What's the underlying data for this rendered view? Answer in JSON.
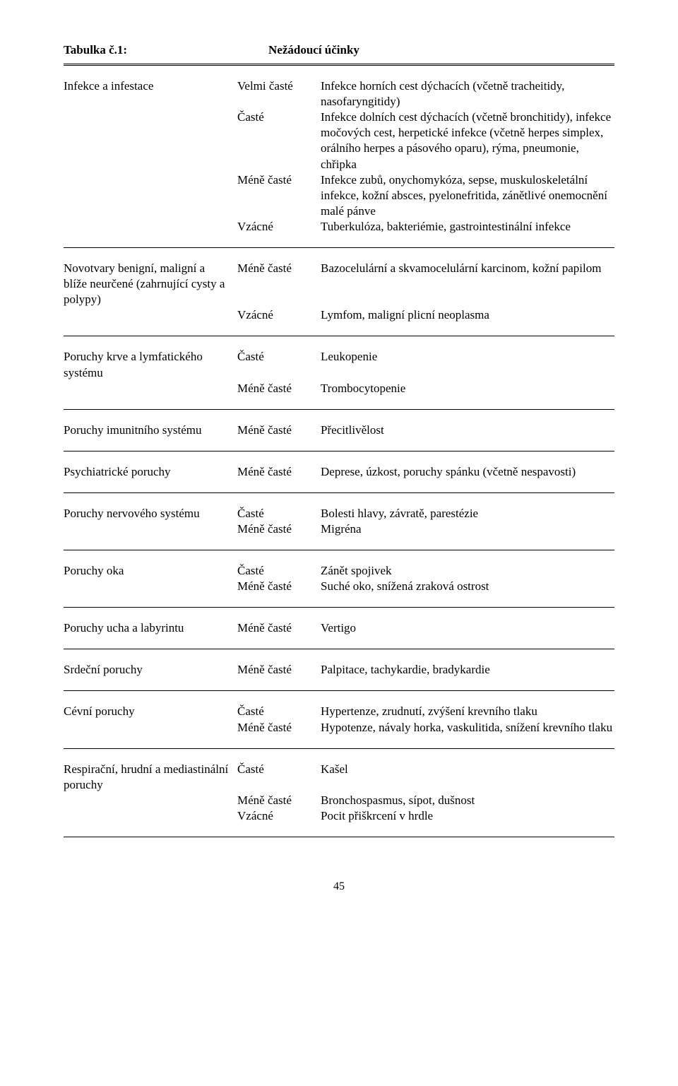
{
  "header": {
    "left": "Tabulka č.1:",
    "right": "Nežádoucí účinky"
  },
  "sections": [
    {
      "category": "Infekce a infestace",
      "entries": [
        {
          "freq": "Velmi časté",
          "desc": "Infekce horních cest dýchacích (včetně tracheitidy, nasofaryngitidy)"
        },
        {
          "freq": "Časté",
          "desc": "Infekce dolních cest dýchacích (včetně bronchitidy), infekce močových cest, herpetické infekce (včetně herpes simplex, orálního herpes a pásového oparu), rýma, pneumonie, chřipka"
        },
        {
          "freq": "Méně časté",
          "desc": "Infekce zubů, onychomykóza, sepse, muskuloskeletální infekce, kožní absces, pyelonefritida, zánětlivé onemocnění malé pánve"
        },
        {
          "freq": "Vzácné",
          "desc": "Tuberkulóza, bakteriémie, gastrointestinální infekce"
        }
      ]
    },
    {
      "category": "Novotvary benigní, maligní a blíže neurčené (zahrnující cysty a polypy)",
      "entries": [
        {
          "freq": "Méně časté",
          "desc": "Bazocelulární a skvamocelulární karcinom, kožní papilom"
        },
        {
          "freq": "Vzácné",
          "desc": "Lymfom, maligní plicní neoplasma"
        }
      ]
    },
    {
      "category": "Poruchy krve a lymfatického systému",
      "entries": [
        {
          "freq": "Časté",
          "desc": "Leukopenie"
        },
        {
          "freq": "Méně časté",
          "desc": "Trombocytopenie"
        }
      ]
    },
    {
      "category": "Poruchy imunitního systému",
      "entries": [
        {
          "freq": "Méně časté",
          "desc": "Přecitlivělost"
        }
      ]
    },
    {
      "category": "Psychiatrické poruchy",
      "entries": [
        {
          "freq": "Méně časté",
          "desc": "Deprese, úzkost, poruchy spánku (včetně nespavosti)"
        }
      ]
    },
    {
      "category": "Poruchy nervového systému",
      "entries": [
        {
          "freq": "Časté",
          "desc": "Bolesti hlavy, závratě, parestézie"
        },
        {
          "freq": "Méně časté",
          "desc": "Migréna"
        }
      ]
    },
    {
      "category": "Poruchy oka",
      "entries": [
        {
          "freq": "Časté",
          "desc": "Zánět spojivek"
        },
        {
          "freq": "Méně časté",
          "desc": "Suché oko, snížená zraková ostrost"
        }
      ]
    },
    {
      "category": "Poruchy ucha a labyrintu",
      "entries": [
        {
          "freq": "Méně časté",
          "desc": "Vertigo"
        }
      ]
    },
    {
      "category": "Srdeční poruchy",
      "entries": [
        {
          "freq": "Méně časté",
          "desc": "Palpitace, tachykardie, bradykardie"
        }
      ]
    },
    {
      "category": "Cévní poruchy",
      "entries": [
        {
          "freq": "Časté",
          "desc": "Hypertenze, zrudnutí, zvýšení krevního tlaku"
        },
        {
          "freq": "Méně časté",
          "desc": "Hypotenze, návaly horka, vaskulitida, snížení krevního tlaku"
        }
      ]
    },
    {
      "category": "Respirační, hrudní a mediastinální poruchy",
      "entries": [
        {
          "freq": "Časté",
          "desc": "Kašel"
        },
        {
          "freq": "Méně časté",
          "desc": "Bronchospasmus, sípot, dušnost"
        },
        {
          "freq": "Vzácné",
          "desc": "Pocit přiškrcení v hrdle"
        }
      ]
    }
  ],
  "lastBorder": true,
  "pageNumber": "45"
}
